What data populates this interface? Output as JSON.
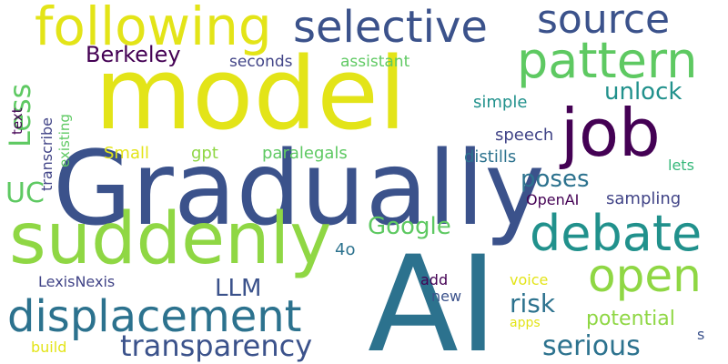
{
  "palette": {
    "yellow": "#e3e418",
    "yellow_green": "#8fd744",
    "light_green": "#5ec962",
    "teal_green": "#35b779",
    "teal": "#21918c",
    "blue_teal": "#2c728e",
    "slate_blue": "#3b528b",
    "dark_blue": "#414487",
    "deep_purple": "#440154"
  },
  "words": [
    {
      "text": "model",
      "color": "#e3e418"
    },
    {
      "text": "Gradually",
      "color": "#3b528b"
    },
    {
      "text": "AI",
      "color": "#2c728e"
    },
    {
      "text": "suddenly",
      "color": "#8fd744"
    },
    {
      "text": "following",
      "color": "#e3e418"
    },
    {
      "text": "selective",
      "color": "#3b528b"
    },
    {
      "text": "source",
      "color": "#3b528b"
    },
    {
      "text": "pattern",
      "color": "#5ec962"
    },
    {
      "text": "job",
      "color": "#440154"
    },
    {
      "text": "debate",
      "color": "#21918c"
    },
    {
      "text": "open",
      "color": "#8fd744"
    },
    {
      "text": "displacement",
      "color": "#2c728e"
    },
    {
      "text": "transparency",
      "color": "#3b528b"
    },
    {
      "text": "unlock",
      "color": "#21918c"
    },
    {
      "text": "Berkeley",
      "color": "#440154"
    },
    {
      "text": "poses",
      "color": "#2c728e"
    },
    {
      "text": "Google",
      "color": "#5ec962"
    },
    {
      "text": "LLM",
      "color": "#3b528b"
    },
    {
      "text": "risk",
      "color": "#2c728e"
    },
    {
      "text": "serious",
      "color": "#2c728e"
    },
    {
      "text": "potential",
      "color": "#8fd744"
    },
    {
      "text": "simple",
      "color": "#21918c"
    },
    {
      "text": "speech",
      "color": "#414487"
    },
    {
      "text": "distills",
      "color": "#2c728e"
    },
    {
      "text": "sampling",
      "color": "#414487"
    },
    {
      "text": "OpenAI",
      "color": "#440154"
    },
    {
      "text": "lets",
      "color": "#35b779"
    },
    {
      "text": "paralegals",
      "color": "#5ec962"
    },
    {
      "text": "gpt",
      "color": "#8fd744"
    },
    {
      "text": "Small",
      "color": "#e3e418"
    },
    {
      "text": "seconds",
      "color": "#414487"
    },
    {
      "text": "assistant",
      "color": "#5ec962"
    },
    {
      "text": "LexisNexis",
      "color": "#414487"
    },
    {
      "text": "add",
      "color": "#440154"
    },
    {
      "text": "new",
      "color": "#3b528b"
    },
    {
      "text": "voice",
      "color": "#e3e418"
    },
    {
      "text": "apps",
      "color": "#e3e418"
    },
    {
      "text": "s",
      "color": "#3b528b"
    },
    {
      "text": "4o",
      "color": "#2c728e"
    },
    {
      "text": "build",
      "color": "#e3e418"
    },
    {
      "text": "Less",
      "color": "#5ec962"
    },
    {
      "text": "UC",
      "color": "#5ec962"
    },
    {
      "text": "text",
      "color": "#440154"
    },
    {
      "text": "transcribe",
      "color": "#414487"
    },
    {
      "text": "existing",
      "color": "#5ec962"
    }
  ]
}
